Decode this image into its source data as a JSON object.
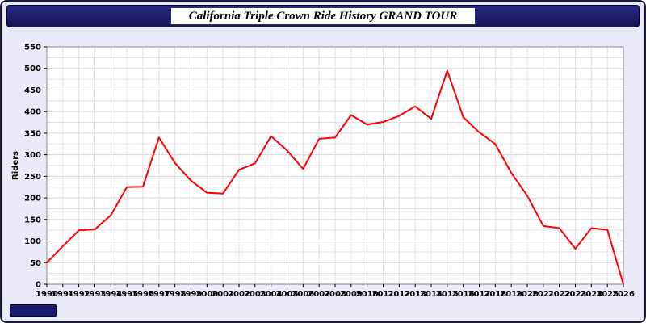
{
  "header": {
    "title": "California Triple Crown Ride History GRAND TOUR"
  },
  "chart_data": {
    "type": "line",
    "title": "California Triple Crown Ride History GRAND TOUR",
    "xlabel": "",
    "ylabel": "Riders",
    "ylim": [
      0,
      550
    ],
    "ytick_interval": 50,
    "grid": true,
    "legend": "none",
    "line_color": "#ff0000",
    "x": [
      1990,
      1991,
      1992,
      1993,
      1994,
      1995,
      1996,
      1997,
      1998,
      1999,
      2000,
      2001,
      2002,
      2003,
      2004,
      2005,
      2006,
      2007,
      2008,
      2009,
      2010,
      2011,
      2012,
      2013,
      2014,
      2015,
      2016,
      2017,
      2018,
      2019,
      2020,
      2021,
      2022,
      2023,
      2024,
      2025,
      2026
    ],
    "values": [
      50,
      88,
      125,
      127,
      160,
      225,
      226,
      340,
      281,
      240,
      212,
      210,
      265,
      280,
      343,
      310,
      267,
      337,
      340,
      392,
      370,
      376,
      390,
      412,
      383,
      495,
      387,
      352,
      325,
      258,
      205,
      135,
      130,
      82,
      130,
      126,
      0
    ]
  },
  "colors": {
    "page_background": "#e9e9f7",
    "title_bar": "#191970",
    "plot_background": "#ffffff",
    "gridline": "#e0e0ea",
    "line": "#ff0000"
  }
}
